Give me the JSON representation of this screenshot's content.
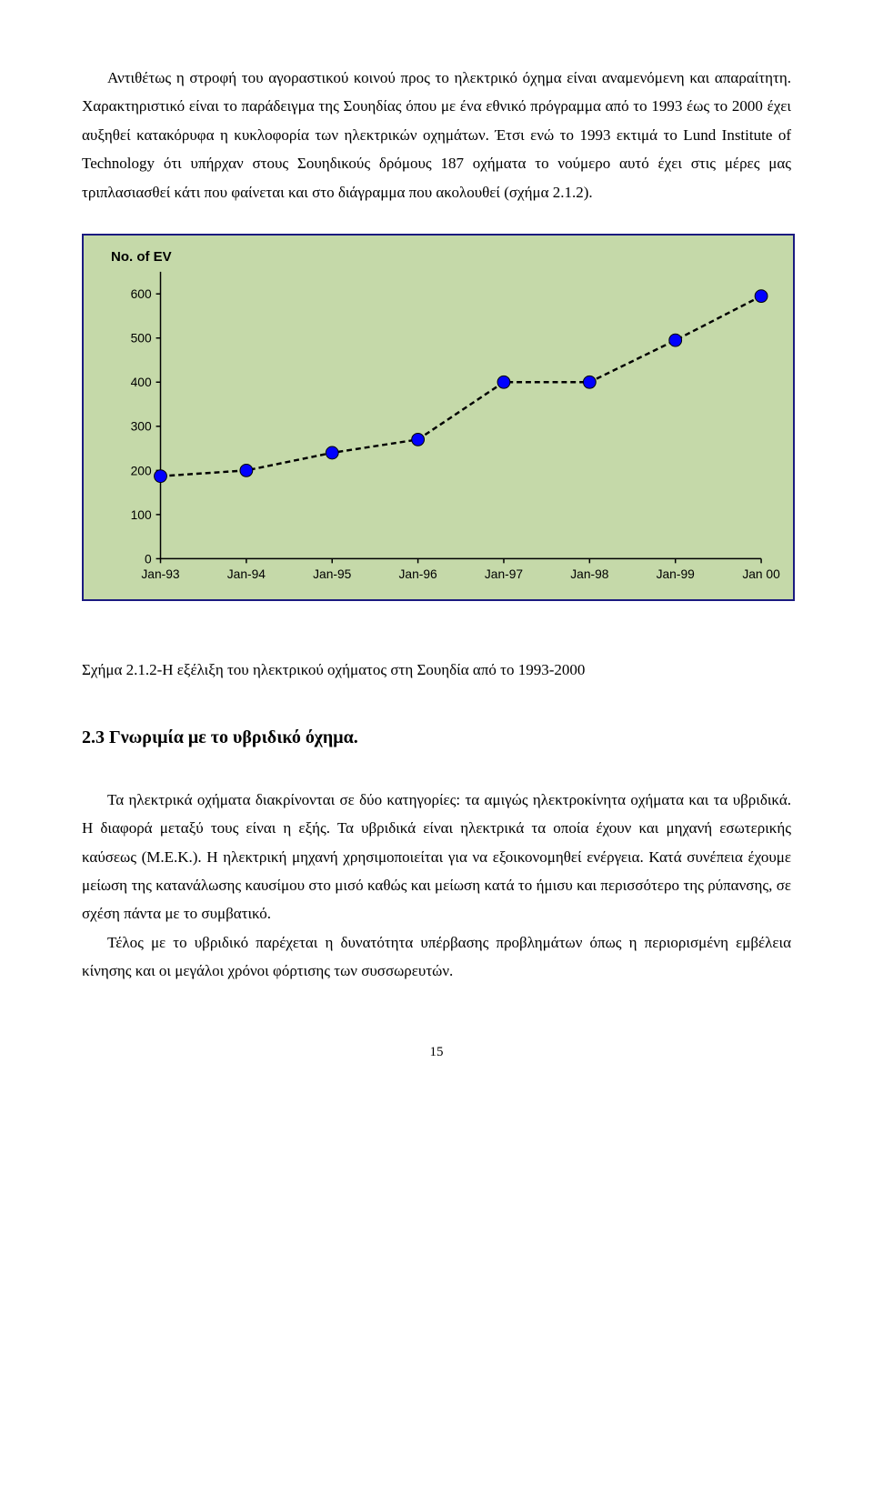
{
  "paragraphs": {
    "p1": "Αντιθέτως η στροφή του αγοραστικού κοινού προς το ηλεκτρικό όχημα είναι αναμενόμενη και απαραίτητη. Χαρακτηριστικό είναι το παράδειγμα της Σουηδίας όπου με ένα εθνικό πρόγραμμα από το 1993 έως το 2000 έχει αυξηθεί κατακόρυφα η κυκλοφορία των ηλεκτρικών οχημάτων. Έτσι ενώ το 1993 εκτιμά το Lund Institute of Technology ότι υπήρχαν στους Σουηδικούς δρόμους 187 οχήματα το νούμερο αυτό έχει στις μέρες μας τριπλασιασθεί κάτι που φαίνεται και στο διάγραμμα που ακολουθεί (σχήμα 2.1.2).",
    "caption": "Σχήμα 2.1.2-Η εξέλιξη του ηλεκτρικού οχήματος στη Σουηδία από το 1993-2000",
    "heading": "2.3 Γνωριμία με το υβριδικό όχημα.",
    "p2": "Τα ηλεκτρικά οχήματα διακρίνονται σε δύο κατηγορίες: τα αμιγώς ηλεκτροκίνητα οχήματα και τα υβριδικά. Η διαφορά μεταξύ τους είναι η εξής. Τα υβριδικά είναι ηλεκτρικά τα οποία έχουν και μηχανή εσωτερικής καύσεως (Μ.Ε.Κ.). Η ηλεκτρική μηχανή χρησιμοποιείται για να εξοικονομηθεί ενέργεια. Κατά συνέπεια έχουμε μείωση της κατανάλωσης καυσίμου στο μισό καθώς και μείωση κατά το ήμισυ και περισσότερο της ρύπανσης, σε σχέση πάντα με το συμβατικό.",
    "p3": "Τέλος με το υβριδικό παρέχεται η δυνατότητα υπέρβασης προβλημάτων όπως η περιορισμένη εμβέλεια κίνησης και οι μεγάλοι χρόνοι φόρτισης των συσσωρευτών."
  },
  "chart": {
    "type": "line",
    "y_axis_title": "No. of EV",
    "y_axis_title_fontsize": 15,
    "y_axis_title_fontweight": "bold",
    "background_color": "#c5d9a9",
    "border_color": "#1a1a80",
    "axis_color": "#000000",
    "line_color": "#000000",
    "marker_fill": "#0000ff",
    "marker_stroke": "#000000",
    "line_dash": "6,4",
    "line_width": 2.5,
    "marker_radius": 7,
    "ylim": [
      0,
      650
    ],
    "ytick_values": [
      0,
      100,
      200,
      300,
      400,
      500,
      600
    ],
    "ytick_labels": [
      "0",
      "100",
      "200",
      "300",
      "400",
      "500",
      "600"
    ],
    "xtick_labels": [
      "Jan-93",
      "Jan-94",
      "Jan-95",
      "Jan-96",
      "Jan-97",
      "Jan-98",
      "Jan-99",
      "Jan 00"
    ],
    "x_positions": [
      0,
      1,
      2,
      3,
      4,
      5,
      6,
      7
    ],
    "values": [
      187,
      200,
      240,
      270,
      400,
      400,
      495,
      595
    ],
    "tick_fontsize": 14,
    "tick_color": "#000000",
    "tick_font": "Arial"
  },
  "page_number": "15"
}
